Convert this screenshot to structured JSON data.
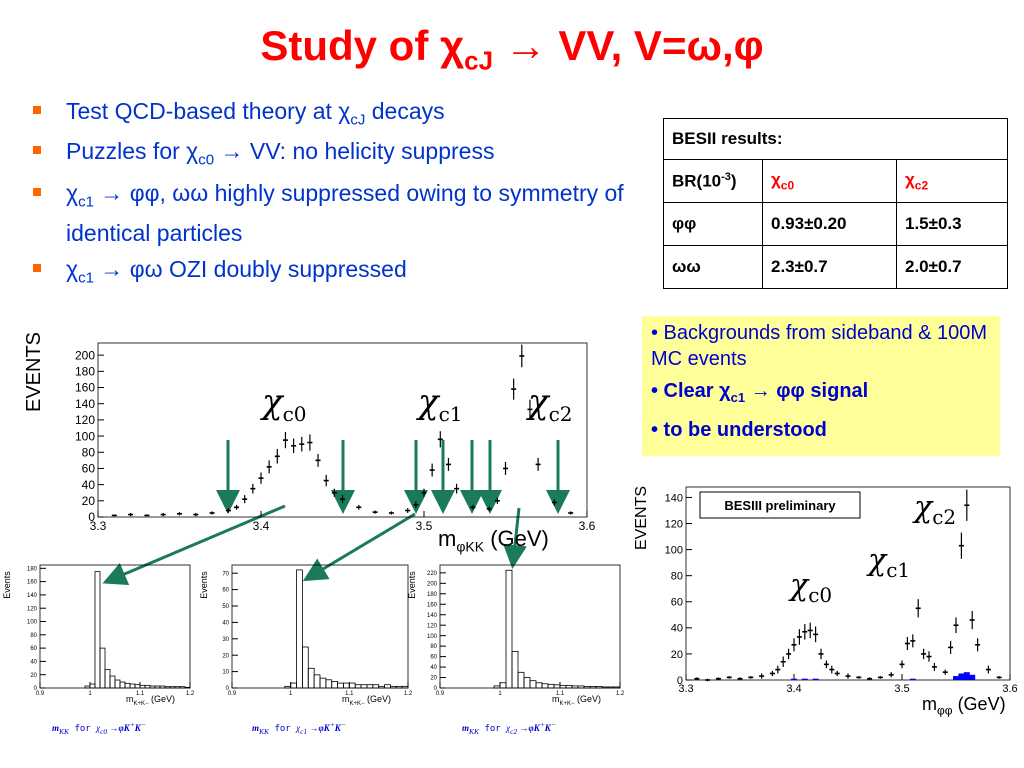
{
  "title": [
    "Study of χ",
    "cJ",
    " → VV, V=ω,φ"
  ],
  "bullets": [
    [
      "Test QCD-based theory at χ",
      "cJ",
      " decays"
    ],
    [
      "Puzzles for χ",
      "c0",
      " → VV: no helicity suppress"
    ],
    [
      "χ",
      "c1",
      " → φφ, ωω highly suppressed owing to symmetry of identical particles"
    ],
    [
      "χ",
      "c1",
      " → φω OZI doubly suppressed"
    ]
  ],
  "table": {
    "header": "BESII results:",
    "rows": [
      [
        [
          "BR(10",
          "-3",
          ")"
        ],
        [
          "χ",
          "c0"
        ],
        [
          "χ",
          "c2"
        ]
      ],
      [
        "φφ",
        "0.93±0.20",
        "1.5±0.3"
      ],
      [
        "ωω",
        "2.3±0.7",
        "2.0±0.7"
      ]
    ]
  },
  "notes": [
    [
      "• Backgrounds from sideband & 100M MC events"
    ],
    [
      "• Clear χ",
      "c1",
      " → φφ signal"
    ],
    [
      "• to be understood"
    ]
  ],
  "chart_data": [
    {
      "type": "scatter",
      "y_label": "EVENTS",
      "x_label": [
        "m",
        "φKK",
        " (GeV)"
      ],
      "annotations": [
        [
          "χ",
          "c0"
        ],
        [
          "χ",
          "c1"
        ],
        [
          "χ",
          "c2"
        ]
      ],
      "xlim": [
        3.3,
        3.6
      ],
      "xticks": [
        3.3,
        3.4,
        3.5,
        3.6
      ],
      "ylim": [
        0,
        215
      ],
      "yticks": [
        0,
        20,
        40,
        60,
        80,
        100,
        120,
        140,
        160,
        180,
        200
      ],
      "x": [
        3.31,
        3.32,
        3.33,
        3.34,
        3.35,
        3.36,
        3.37,
        3.38,
        3.385,
        3.39,
        3.395,
        3.4,
        3.405,
        3.41,
        3.415,
        3.42,
        3.425,
        3.43,
        3.435,
        3.44,
        3.445,
        3.45,
        3.46,
        3.47,
        3.48,
        3.49,
        3.495,
        3.5,
        3.505,
        3.51,
        3.515,
        3.52,
        3.53,
        3.54,
        3.545,
        3.55,
        3.555,
        3.56,
        3.565,
        3.57,
        3.58,
        3.59
      ],
      "series": [
        {
          "color": "#000000",
          "values": [
            2,
            3,
            2,
            3,
            4,
            3,
            5,
            8,
            12,
            22,
            35,
            48,
            62,
            75,
            95,
            88,
            90,
            92,
            70,
            45,
            30,
            22,
            12,
            6,
            5,
            8,
            15,
            30,
            58,
            96,
            65,
            35,
            12,
            10,
            20,
            60,
            158,
            199,
            133,
            65,
            18,
            5
          ],
          "errors": [
            1,
            2,
            1,
            2,
            2,
            2,
            2,
            3,
            3,
            5,
            6,
            7,
            8,
            9,
            10,
            9,
            9,
            10,
            8,
            7,
            5,
            5,
            3,
            2,
            2,
            3,
            4,
            5,
            8,
            10,
            8,
            6,
            3,
            3,
            4,
            8,
            13,
            14,
            12,
            8,
            4,
            2
          ]
        }
      ]
    },
    {
      "type": "histogram",
      "y_label": "Events",
      "x_label": [
        "m",
        "K+K−",
        " (GeV)"
      ],
      "caption": [
        "m",
        "KK",
        " for ",
        "χ",
        "c0",
        " →",
        "φK",
        "+",
        "K",
        "−"
      ],
      "xlim": [
        0.9,
        1.2
      ],
      "xticks": [
        0.9,
        1,
        1.1,
        1.2
      ],
      "ylim": [
        0,
        185
      ],
      "yticks": [
        0,
        20,
        40,
        60,
        80,
        100,
        120,
        140,
        160,
        180
      ],
      "bins": [
        0.9,
        0.91,
        0.92,
        0.93,
        0.94,
        0.95,
        0.96,
        0.97,
        0.98,
        0.99,
        1.0,
        1.01,
        1.02,
        1.03,
        1.04,
        1.05,
        1.06,
        1.07,
        1.08,
        1.09,
        1.1,
        1.11,
        1.12,
        1.13,
        1.14,
        1.15,
        1.16,
        1.17,
        1.18,
        1.19,
        1.2
      ],
      "counts": [
        0,
        0,
        0,
        0,
        0,
        0,
        0,
        0,
        0,
        3,
        6,
        175,
        60,
        28,
        18,
        12,
        9,
        7,
        6,
        5,
        4,
        4,
        3,
        3,
        3,
        2,
        2,
        2,
        2,
        1
      ]
    },
    {
      "type": "histogram",
      "y_label": "Events",
      "x_label": [
        "m",
        "K+K−",
        " (GeV)"
      ],
      "caption": [
        "m",
        "KK",
        " for ",
        "χ",
        "c1",
        " →",
        "φK",
        "+",
        "K",
        "−"
      ],
      "xlim": [
        0.9,
        1.2
      ],
      "xticks": [
        0.9,
        1,
        1.1,
        1.2
      ],
      "ylim": [
        0,
        75
      ],
      "yticks": [
        0,
        10,
        20,
        30,
        40,
        50,
        60,
        70
      ],
      "bins": [
        0.9,
        0.91,
        0.92,
        0.93,
        0.94,
        0.95,
        0.96,
        0.97,
        0.98,
        0.99,
        1.0,
        1.01,
        1.02,
        1.03,
        1.04,
        1.05,
        1.06,
        1.07,
        1.08,
        1.09,
        1.1,
        1.11,
        1.12,
        1.13,
        1.14,
        1.15,
        1.16,
        1.17,
        1.18,
        1.19,
        1.2
      ],
      "counts": [
        0,
        0,
        0,
        0,
        0,
        0,
        0,
        0,
        0,
        1,
        3,
        72,
        25,
        12,
        8,
        6,
        5,
        4,
        3,
        3,
        3,
        2,
        2,
        2,
        2,
        1,
        2,
        1,
        1,
        1
      ]
    },
    {
      "type": "histogram",
      "y_label": "Events",
      "x_label": [
        "m",
        "K+K−",
        " (GeV)"
      ],
      "caption": [
        "m",
        "KK",
        " for ",
        "χ",
        "c2",
        " →",
        "φK",
        "+",
        "K",
        "−"
      ],
      "xlim": [
        0.9,
        1.2
      ],
      "xticks": [
        0.9,
        1,
        1.1,
        1.2
      ],
      "ylim": [
        0,
        235
      ],
      "yticks": [
        0,
        20,
        40,
        60,
        80,
        100,
        120,
        140,
        160,
        180,
        200,
        220
      ],
      "bins": [
        0.9,
        0.91,
        0.92,
        0.93,
        0.94,
        0.95,
        0.96,
        0.97,
        0.98,
        0.99,
        1.0,
        1.01,
        1.02,
        1.03,
        1.04,
        1.05,
        1.06,
        1.07,
        1.08,
        1.09,
        1.1,
        1.11,
        1.12,
        1.13,
        1.14,
        1.15,
        1.16,
        1.17,
        1.18,
        1.19,
        1.2
      ],
      "counts": [
        0,
        0,
        0,
        0,
        0,
        0,
        0,
        0,
        0,
        4,
        10,
        225,
        70,
        30,
        20,
        14,
        10,
        8,
        7,
        6,
        5,
        5,
        4,
        4,
        3,
        3,
        3,
        2,
        2,
        2
      ]
    },
    {
      "type": "scatter",
      "y_label": "EVENTS",
      "x_label": [
        "m",
        "φφ",
        " (GeV)"
      ],
      "annotations": [
        [
          "χ",
          "c0"
        ],
        [
          "χ",
          "c1"
        ],
        [
          "χ",
          "c2"
        ]
      ],
      "legend_text": "BESIII preliminary",
      "xlim": [
        3.3,
        3.6
      ],
      "xticks": [
        3.3,
        3.4,
        3.5,
        3.6
      ],
      "ylim": [
        0,
        148
      ],
      "yticks": [
        0,
        20,
        40,
        60,
        80,
        100,
        120,
        140
      ],
      "x": [
        3.31,
        3.32,
        3.33,
        3.34,
        3.35,
        3.36,
        3.37,
        3.38,
        3.385,
        3.39,
        3.395,
        3.4,
        3.405,
        3.41,
        3.415,
        3.42,
        3.425,
        3.43,
        3.435,
        3.44,
        3.45,
        3.46,
        3.47,
        3.48,
        3.49,
        3.5,
        3.505,
        3.51,
        3.515,
        3.52,
        3.525,
        3.53,
        3.54,
        3.545,
        3.55,
        3.555,
        3.56,
        3.565,
        3.57,
        3.58,
        3.59
      ],
      "series": [
        {
          "color": "#000000",
          "values": [
            1,
            0,
            1,
            2,
            1,
            2,
            3,
            5,
            8,
            14,
            20,
            27,
            33,
            37,
            38,
            35,
            20,
            12,
            8,
            5,
            3,
            2,
            1,
            2,
            4,
            12,
            28,
            30,
            55,
            20,
            18,
            10,
            6,
            25,
            42,
            103,
            134,
            46,
            27,
            8,
            2
          ],
          "errors": [
            1,
            1,
            1,
            1,
            1,
            1,
            2,
            2,
            3,
            4,
            4,
            5,
            6,
            6,
            6,
            6,
            4,
            3,
            3,
            2,
            2,
            1,
            1,
            1,
            2,
            3,
            5,
            5,
            7,
            4,
            4,
            3,
            2,
            5,
            6,
            10,
            12,
            7,
            5,
            3,
            1
          ]
        },
        {
          "color": "#0000ff",
          "values": [
            0,
            0,
            0,
            0,
            0,
            0,
            0,
            0,
            0,
            0,
            0,
            1,
            0,
            1,
            0,
            1,
            0,
            0,
            0,
            0,
            0,
            0,
            0,
            0,
            0,
            0,
            0,
            1,
            0,
            0,
            0,
            0,
            0,
            0,
            3,
            5,
            6,
            4,
            0,
            0,
            0
          ]
        }
      ]
    }
  ]
}
